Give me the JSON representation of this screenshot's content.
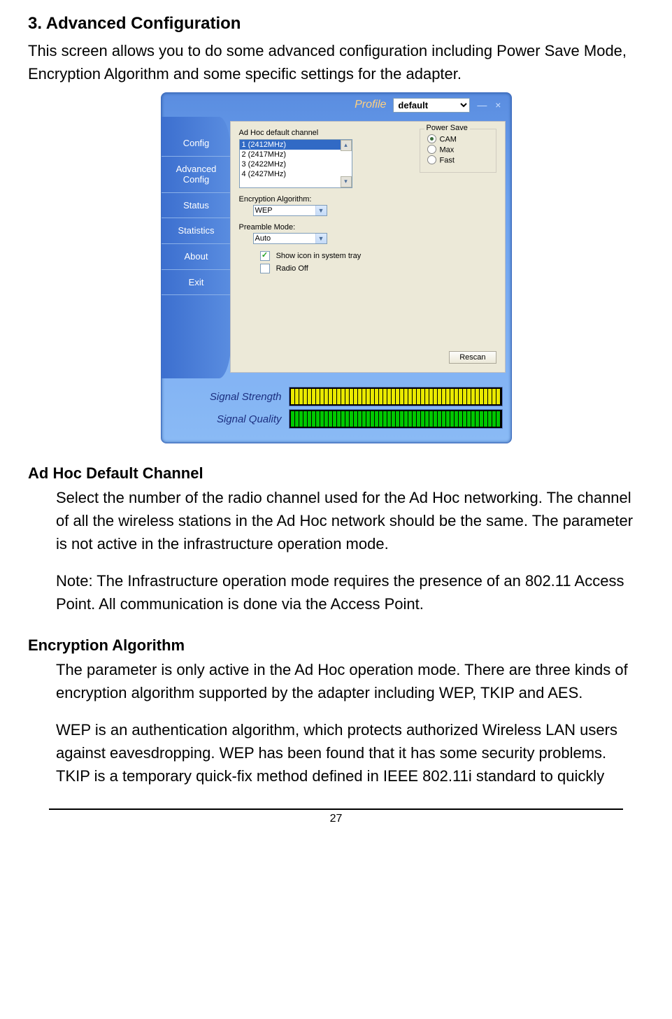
{
  "section": {
    "heading": "3. Advanced Configuration",
    "intro": "This screen allows you to do some advanced configuration including Power Save Mode, Encryption Algorithm and some specific settings for the adapter."
  },
  "screenshot": {
    "profile_label": "Profile",
    "profile_value": "default",
    "title_buttons": "— ×",
    "sidebar": {
      "items": [
        "Config",
        "Advanced\nConfig",
        "Status",
        "Statistics",
        "About",
        "Exit"
      ]
    },
    "panel": {
      "adhoc_label": "Ad Hoc default channel",
      "channels": [
        "1 (2412MHz)",
        "2 (2417MHz)",
        "3 (2422MHz)",
        "4 (2427MHz)"
      ],
      "channel_selected_index": 0,
      "powersave": {
        "group_label": "Power Save",
        "options": [
          "CAM",
          "Max",
          "Fast"
        ],
        "selected": "CAM"
      },
      "encryption_label": "Encryption Algorithm:",
      "encryption_value": "WEP",
      "preamble_label": "Preamble Mode:",
      "preamble_value": "Auto",
      "show_icon_label": "Show icon in system tray",
      "show_icon_checked": true,
      "radio_off_label": "Radio Off",
      "radio_off_checked": false,
      "rescan_label": "Rescan"
    },
    "signals": {
      "strength_label": "Signal Strength",
      "quality_label": "Signal Quality",
      "strength_color": "yellow",
      "quality_color": "green",
      "seg_count": 50
    }
  },
  "adhoc_section": {
    "heading": "Ad Hoc Default Channel",
    "p1": "Select the number of the radio channel used for the Ad Hoc networking. The channel of all the wireless stations in the Ad Hoc network should be the same. The parameter is not active in the infrastructure operation mode.",
    "p2": "Note: The Infrastructure operation mode requires the presence of an 802.11 Access Point. All communication is done via the Access Point."
  },
  "encryption_section": {
    "heading": "Encryption Algorithm",
    "p1": "The parameter is only active in the Ad Hoc operation mode. There are three kinds of encryption algorithm supported by the adapter including WEP, TKIP and AES.",
    "p2": "WEP is an authentication algorithm, which protects authorized Wireless LAN users against eavesdropping. WEP has been found that it has some security problems. TKIP is a temporary quick-fix method defined in IEEE 802.11i standard to quickly"
  },
  "page_number": "27"
}
